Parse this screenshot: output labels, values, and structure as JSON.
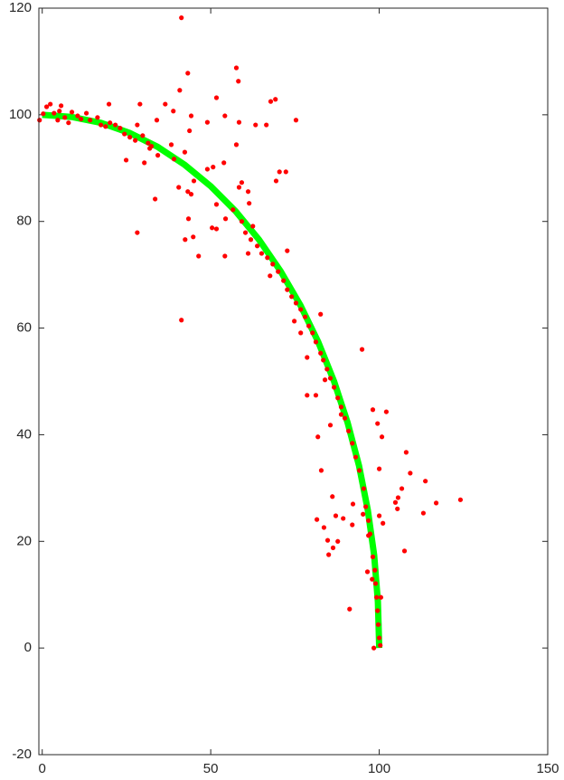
{
  "chart_data": {
    "type": "scatter",
    "xlim": [
      -1,
      150
    ],
    "ylim": [
      -20,
      120
    ],
    "xticks": [
      0,
      50,
      100,
      150
    ],
    "yticks": [
      -20,
      0,
      20,
      40,
      60,
      80,
      100,
      120
    ],
    "grid": false,
    "series": [
      {
        "type": "line",
        "color": "#00ff00",
        "x": [
          0,
          8.7,
          17.4,
          25.9,
          34.2,
          42.3,
          50,
          57.4,
          64.3,
          70.7,
          76.6,
          81.9,
          86.6,
          90.6,
          94,
          96.6,
          98.5,
          99.6,
          100
        ],
        "values": [
          100,
          99.6,
          98.5,
          96.6,
          94,
          90.6,
          86.6,
          81.9,
          76.6,
          70.7,
          64.3,
          57.4,
          50,
          42.3,
          34.2,
          25.9,
          17.4,
          8.7,
          0
        ]
      },
      {
        "type": "scatter",
        "color": "#ff0000",
        "x": [
          -0.8,
          0.3,
          1.3,
          2.4,
          3.5,
          4.6,
          5.1,
          5.6,
          6.7,
          7.8,
          8.8,
          10.5,
          11.5,
          13.1,
          14.2,
          16.4,
          17.4,
          18.8,
          19.8,
          20.1,
          21.7,
          23.1,
          24.4,
          24.9,
          26,
          27.6,
          28.2,
          28.2,
          29,
          29.8,
          30.3,
          31.4,
          31.9,
          32.4,
          33.5,
          34,
          34.3,
          36.5,
          38.3,
          38.9,
          39.1,
          40.5,
          40.8,
          41.3,
          41.3,
          42.3,
          42.4,
          43.2,
          43.2,
          43.4,
          43.7,
          44.2,
          44.2,
          44.8,
          45,
          46.4,
          49,
          49,
          50.4,
          50.7,
          51.7,
          51.7,
          51.7,
          53.9,
          54.2,
          54.2,
          54.4,
          56.6,
          57.6,
          57.6,
          58.2,
          58.4,
          58.4,
          59.2,
          59.2,
          60.3,
          61.1,
          61.1,
          61.4,
          61.9,
          62.5,
          63.3,
          63.8,
          65.1,
          66.5,
          66.8,
          67.6,
          67.8,
          68.4,
          69.2,
          69.4,
          70,
          70.4,
          71.6,
          72.3,
          72.7,
          72.7,
          74,
          74.8,
          75.3,
          75.3,
          76.7,
          76.7,
          78,
          78.6,
          78.6,
          79.1,
          80.2,
          81.2,
          81.2,
          81.5,
          81.8,
          82.6,
          82.6,
          82.8,
          83.4,
          83.6,
          83.9,
          84.5,
          84.7,
          85,
          85.5,
          85.5,
          86.1,
          86.3,
          86.6,
          87.1,
          87.7,
          87.7,
          88.7,
          88.7,
          89.3,
          89.8,
          90.9,
          91.2,
          92,
          92,
          92.2,
          93,
          94.1,
          94.9,
          95.2,
          95.4,
          96,
          96.5,
          96.8,
          96.8,
          97.3,
          97.9,
          98.1,
          98.1,
          98.4,
          98.7,
          98.9,
          99.2,
          99.5,
          99.5,
          99.7,
          100,
          100,
          100,
          100.3,
          100.5,
          100.8,
          101.1,
          102.1,
          104.8,
          105.4,
          105.6,
          106.7,
          107.5,
          108,
          109.2,
          113.1,
          113.7,
          116.9,
          124.1
        ],
        "values": [
          99,
          100.2,
          101.5,
          102,
          100.3,
          99,
          100.7,
          101.7,
          99.5,
          98.5,
          100.5,
          99.8,
          99.2,
          100.3,
          99,
          99.5,
          98.1,
          97.8,
          102,
          98.5,
          98.1,
          97.5,
          96.4,
          91.5,
          95.8,
          95.2,
          98.1,
          77.9,
          102,
          96.1,
          91,
          94.7,
          93.7,
          94.1,
          84.2,
          99,
          92.4,
          102,
          94.4,
          100.7,
          91.7,
          86.4,
          104.6,
          118.2,
          61.5,
          93,
          76.6,
          107.8,
          85.6,
          80.5,
          97,
          99.8,
          85.1,
          77.1,
          87.6,
          73.5,
          98.6,
          89.8,
          78.8,
          90.2,
          103.2,
          78.6,
          83.2,
          91,
          99.8,
          73.5,
          80.5,
          82.2,
          108.8,
          94.4,
          106.3,
          98.6,
          86.4,
          87.3,
          80,
          77.9,
          85.6,
          74,
          83.4,
          76.6,
          79.1,
          98.1,
          75.4,
          74,
          98.1,
          73.2,
          69.8,
          102.5,
          72,
          102.9,
          87.6,
          70.6,
          89.3,
          68.9,
          89.3,
          67.2,
          74.5,
          65.9,
          61.3,
          99,
          64.7,
          63.5,
          59.1,
          62.1,
          54.5,
          47.4,
          60.4,
          59.1,
          57.4,
          47.4,
          24.1,
          39.6,
          62.6,
          55.3,
          33.3,
          54,
          22.6,
          50.3,
          52.3,
          20.2,
          17.5,
          50.6,
          41.8,
          28.4,
          18.8,
          48.9,
          24.8,
          46.9,
          20,
          45.2,
          43.8,
          24.3,
          43.1,
          40.7,
          7.3,
          38.4,
          23.1,
          27,
          35.8,
          33.3,
          56,
          25.1,
          29.9,
          26.5,
          14.3,
          23.9,
          21.1,
          21.4,
          12.9,
          17.1,
          44.7,
          0,
          14.6,
          12.1,
          9.5,
          7,
          42.1,
          4.4,
          1.9,
          33.6,
          24.8,
          0.5,
          9.5,
          39.6,
          23.4,
          44.3,
          27.3,
          26.1,
          28.2,
          29.9,
          18.2,
          36.7,
          32.8,
          25.3,
          31.3,
          27.2,
          27.8
        ]
      }
    ]
  }
}
